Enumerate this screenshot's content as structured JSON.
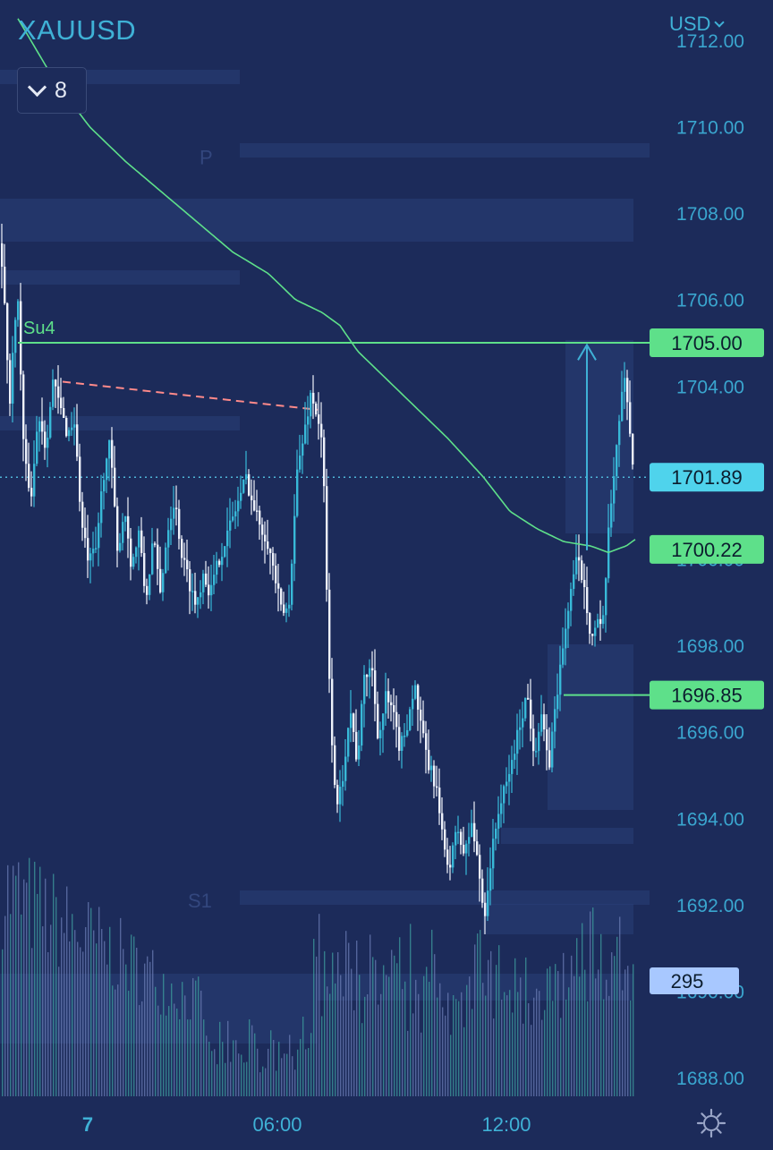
{
  "header": {
    "symbol": "XAUUSD",
    "indicator_count": "8",
    "currency": "USD"
  },
  "chart_data": {
    "type": "candlestick",
    "symbol": "XAUUSD",
    "ylim": [
      1687.5,
      1712.3
    ],
    "y_ticks": [
      "1712.00",
      "1710.00",
      "1708.00",
      "1706.00",
      "1704.00",
      "1702.00",
      "1700.00",
      "1698.00",
      "1696.00",
      "1694.00",
      "1692.00",
      "1690.00",
      "1688.00"
    ],
    "x_ticks": [
      "7",
      "06:00",
      "12:00"
    ],
    "price_path": [
      [
        0,
        1707.3
      ],
      [
        10,
        1703.6
      ],
      [
        18,
        1706.4
      ],
      [
        26,
        1702.2
      ],
      [
        34,
        1701.5
      ],
      [
        42,
        1703.4
      ],
      [
        50,
        1702.6
      ],
      [
        58,
        1704.1
      ],
      [
        66,
        1703.5
      ],
      [
        74,
        1702.9
      ],
      [
        82,
        1703.2
      ],
      [
        90,
        1700.8
      ],
      [
        98,
        1699.9
      ],
      [
        106,
        1700.2
      ],
      [
        114,
        1701.9
      ],
      [
        122,
        1702.7
      ],
      [
        130,
        1700.1
      ],
      [
        138,
        1701.2
      ],
      [
        146,
        1699.8
      ],
      [
        154,
        1700.6
      ],
      [
        162,
        1699.0
      ],
      [
        170,
        1700.5
      ],
      [
        178,
        1699.2
      ],
      [
        186,
        1700.7
      ],
      [
        194,
        1701.4
      ],
      [
        202,
        1700.1
      ],
      [
        210,
        1699.5
      ],
      [
        218,
        1698.9
      ],
      [
        226,
        1699.7
      ],
      [
        234,
        1699.2
      ],
      [
        242,
        1699.9
      ],
      [
        250,
        1700.4
      ],
      [
        258,
        1700.9
      ],
      [
        266,
        1701.4
      ],
      [
        274,
        1701.9
      ],
      [
        282,
        1701.2
      ],
      [
        290,
        1700.8
      ],
      [
        298,
        1700.4
      ],
      [
        306,
        1699.6
      ],
      [
        314,
        1698.7
      ],
      [
        322,
        1698.9
      ],
      [
        330,
        1701.9
      ],
      [
        338,
        1702.8
      ],
      [
        346,
        1703.8
      ],
      [
        354,
        1703.3
      ],
      [
        360,
        1702.4
      ],
      [
        364,
        1699.2
      ],
      [
        368,
        1696.5
      ],
      [
        372,
        1695.1
      ],
      [
        376,
        1694.2
      ],
      [
        382,
        1695.0
      ],
      [
        390,
        1696.6
      ],
      [
        398,
        1695.3
      ],
      [
        406,
        1697.2
      ],
      [
        414,
        1697.6
      ],
      [
        422,
        1695.8
      ],
      [
        430,
        1696.8
      ],
      [
        438,
        1696.4
      ],
      [
        446,
        1695.6
      ],
      [
        454,
        1696.2
      ],
      [
        462,
        1697.1
      ],
      [
        470,
        1696.0
      ],
      [
        478,
        1695.2
      ],
      [
        486,
        1694.8
      ],
      [
        494,
        1693.4
      ],
      [
        502,
        1692.9
      ],
      [
        510,
        1693.8
      ],
      [
        518,
        1693.1
      ],
      [
        526,
        1693.9
      ],
      [
        534,
        1692.8
      ],
      [
        540,
        1691.7
      ],
      [
        548,
        1693.1
      ],
      [
        556,
        1694.2
      ],
      [
        564,
        1694.7
      ],
      [
        572,
        1695.4
      ],
      [
        580,
        1696.2
      ],
      [
        588,
        1696.9
      ],
      [
        596,
        1695.5
      ],
      [
        604,
        1696.4
      ],
      [
        612,
        1695.1
      ],
      [
        620,
        1696.7
      ],
      [
        628,
        1697.9
      ],
      [
        636,
        1699.2
      ],
      [
        644,
        1700.0
      ],
      [
        652,
        1699.4
      ],
      [
        660,
        1698.1
      ],
      [
        666,
        1698.6
      ],
      [
        672,
        1698.2
      ],
      [
        678,
        1700.3
      ],
      [
        684,
        1701.8
      ],
      [
        690,
        1703.1
      ],
      [
        696,
        1704.2
      ],
      [
        700,
        1703.8
      ],
      [
        704,
        1702.6
      ],
      [
        708,
        1701.89
      ]
    ],
    "moving_average_path": [
      [
        20,
        1712.5
      ],
      [
        60,
        1711.1
      ],
      [
        100,
        1710.0
      ],
      [
        140,
        1709.2
      ],
      [
        180,
        1708.5
      ],
      [
        220,
        1707.8
      ],
      [
        260,
        1707.1
      ],
      [
        300,
        1706.6
      ],
      [
        330,
        1706.0
      ],
      [
        360,
        1705.7
      ],
      [
        380,
        1705.4
      ],
      [
        400,
        1704.8
      ],
      [
        430,
        1704.2
      ],
      [
        460,
        1703.6
      ],
      [
        500,
        1702.8
      ],
      [
        540,
        1701.9
      ],
      [
        570,
        1701.1
      ],
      [
        600,
        1700.7
      ],
      [
        630,
        1700.4
      ],
      [
        660,
        1700.3
      ],
      [
        680,
        1700.15
      ],
      [
        700,
        1700.3
      ],
      [
        710,
        1700.45
      ]
    ],
    "levels": [
      {
        "label": "Su4",
        "price": 1705.0,
        "badge": "1705.00"
      },
      {
        "label": "",
        "price": 1701.89,
        "badge": "1701.89"
      },
      {
        "label": "",
        "price": 1700.22,
        "badge": "1700.22"
      },
      {
        "label": "",
        "price": 1696.85,
        "badge": "1696.85"
      }
    ],
    "zone_labels": [
      {
        "label": "P",
        "price": 1709.3
      },
      {
        "label": "S1",
        "price": 1692.1
      }
    ],
    "trendline": [
      [
        70,
        1704.1
      ],
      [
        355,
        1703.45
      ]
    ],
    "volume_badge": "295",
    "colors": {
      "background": "#1c2b5a",
      "accent": "#3fb1d6",
      "moving_average": "#5ee08a",
      "level_badge": "#5ee08a",
      "price_badge": "#4fd3ec",
      "volume_badge": "#a8c8ff",
      "trendline": "#ff8a8a"
    }
  }
}
